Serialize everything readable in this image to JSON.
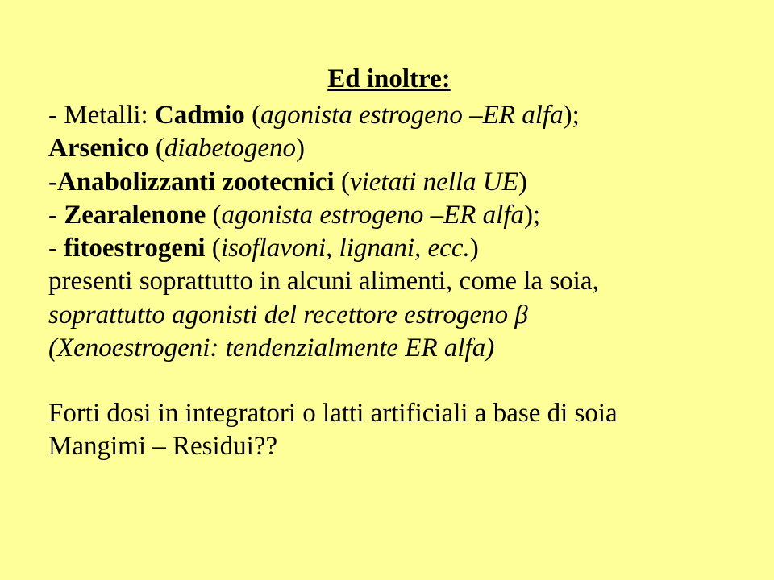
{
  "title": "Ed inoltre:",
  "l1a": "- Metalli: ",
  "l1b": "Cadmio",
  "l1c": " (",
  "l1d": "agonista estrogeno –ER alfa",
  "l1e": ");",
  "l2a": "Arsenico",
  "l2b": " (",
  "l2c": "diabetogeno",
  "l2d": ")",
  "l3a": "-",
  "l3b": "Anabolizzanti zootecnici",
  "l3c": " (",
  "l3d": "vietati nella UE",
  "l3e": ")",
  "l4a": "- ",
  "l4b": "Zearalenone",
  "l4c": " (",
  "l4d": "agonista estrogeno –ER alfa",
  "l4e": ");",
  "l5a": "- ",
  "l5b": "fitoestrogeni",
  "l5c": " (",
  "l5d": "isoflavoni, lignani, ecc.",
  "l5e": ")",
  "l6": "presenti soprattutto in alcuni alimenti, come la soia",
  "l6t": ",",
  "l7a": "soprattutto agonisti del recettore estrogeno ",
  "l7b": "β",
  "l8": "(Xenoestrogeni: tendenzialmente ER alfa)",
  "p2a": "Forti dosi in integratori o latti artificiali a base di soia",
  "p2b": "Mangimi – Residui??"
}
